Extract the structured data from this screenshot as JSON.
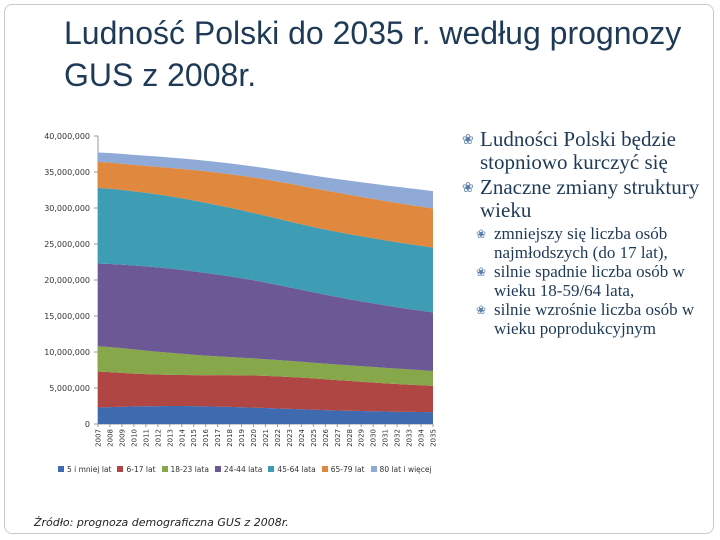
{
  "slide": {
    "title": "Ludność Polski do 2035 r. według prognozy GUS z 2008r.",
    "source": "Źródło: prognoza demograficzna  GUS z 2008r."
  },
  "bullets": [
    {
      "level": 1,
      "text": "Ludności Polski będzie stopniowo kurczyć się"
    },
    {
      "level": 1,
      "text": "Znaczne zmiany struktury wieku"
    },
    {
      "level": 2,
      "text": "zmniejszy się liczba osób najmłodszych (do 17 lat),"
    },
    {
      "level": 2,
      "text": "silnie spadnie liczba osób w wieku 18-59/64 lata,"
    },
    {
      "level": 2,
      "text": "silnie wzrośnie liczba osób w wieku poprodukcyjnym"
    }
  ],
  "chart_data": {
    "type": "area",
    "stacked": true,
    "categories": [
      "2007",
      "2008",
      "2009",
      "2010",
      "2011",
      "2012",
      "2013",
      "2014",
      "2015",
      "2016",
      "2017",
      "2018",
      "2019",
      "2020",
      "2021",
      "2022",
      "2023",
      "2024",
      "2025",
      "2026",
      "2027",
      "2028",
      "2029",
      "2030",
      "2031",
      "2032",
      "2033",
      "2034",
      "2035"
    ],
    "y_ticks": [
      "0",
      "5,000,000",
      "10,000,000",
      "15,000,000",
      "20,000,000",
      "25,000,000",
      "30,000,000",
      "35,000,000",
      "40,000,000"
    ],
    "ylim": [
      0,
      40000000
    ],
    "legend_position": "bottom",
    "series": [
      {
        "name": "5 i mniej lat",
        "color": "#3f6ab0",
        "values": [
          2300000,
          2350000,
          2400000,
          2440000,
          2470000,
          2490000,
          2500000,
          2500000,
          2480000,
          2450000,
          2420000,
          2380000,
          2330000,
          2280000,
          2220000,
          2160000,
          2100000,
          2040000,
          1980000,
          1930000,
          1880000,
          1840000,
          1800000,
          1770000,
          1740000,
          1710000,
          1690000,
          1670000,
          1650000
        ]
      },
      {
        "name": "6-17 lat",
        "color": "#b04643",
        "values": [
          5000000,
          4850000,
          4700000,
          4560000,
          4450000,
          4380000,
          4330000,
          4300000,
          4300000,
          4320000,
          4360000,
          4400000,
          4430000,
          4450000,
          4460000,
          4450000,
          4430000,
          4400000,
          4350000,
          4290000,
          4220000,
          4150000,
          4070000,
          3990000,
          3910000,
          3840000,
          3770000,
          3710000,
          3650000
        ]
      },
      {
        "name": "18-23 lata",
        "color": "#86a84a",
        "values": [
          3500000,
          3480000,
          3430000,
          3360000,
          3270000,
          3170000,
          3060000,
          2950000,
          2840000,
          2730000,
          2620000,
          2530000,
          2450000,
          2380000,
          2320000,
          2270000,
          2230000,
          2200000,
          2180000,
          2170000,
          2160000,
          2160000,
          2160000,
          2160000,
          2150000,
          2140000,
          2120000,
          2100000,
          2070000
        ]
      },
      {
        "name": "24-44 lata",
        "color": "#6c5894",
        "values": [
          11500000,
          11550000,
          11600000,
          11650000,
          11700000,
          11720000,
          11700000,
          11650000,
          11580000,
          11480000,
          11350000,
          11200000,
          11030000,
          10850000,
          10650000,
          10440000,
          10220000,
          10000000,
          9780000,
          9570000,
          9370000,
          9180000,
          9000000,
          8830000,
          8670000,
          8520000,
          8380000,
          8250000,
          8130000
        ]
      },
      {
        "name": "45-64 lata",
        "color": "#3f9cb5",
        "values": [
          10500000,
          10450000,
          10380000,
          10300000,
          10220000,
          10130000,
          10040000,
          9950000,
          9850000,
          9750000,
          9640000,
          9540000,
          9440000,
          9350000,
          9270000,
          9200000,
          9150000,
          9110000,
          9080000,
          9060000,
          9050000,
          9040000,
          9040000,
          9040000,
          9040000,
          9040000,
          9030000,
          9020000,
          9000000
        ]
      },
      {
        "name": "65-79 lat",
        "color": "#e0883e",
        "values": [
          3600000,
          3620000,
          3640000,
          3680000,
          3740000,
          3830000,
          3950000,
          4080000,
          4220000,
          4370000,
          4520000,
          4660000,
          4800000,
          4930000,
          5050000,
          5160000,
          5250000,
          5320000,
          5380000,
          5420000,
          5450000,
          5470000,
          5480000,
          5480000,
          5470000,
          5460000,
          5450000,
          5440000,
          5430000
        ]
      },
      {
        "name": "80 lat i więcej",
        "color": "#8faad6",
        "values": [
          1300000,
          1330000,
          1360000,
          1390000,
          1410000,
          1430000,
          1440000,
          1450000,
          1460000,
          1470000,
          1480000,
          1490000,
          1510000,
          1530000,
          1560000,
          1600000,
          1650000,
          1700000,
          1760000,
          1820000,
          1890000,
          1960000,
          2030000,
          2100000,
          2170000,
          2240000,
          2300000,
          2360000,
          2420000
        ]
      }
    ]
  }
}
